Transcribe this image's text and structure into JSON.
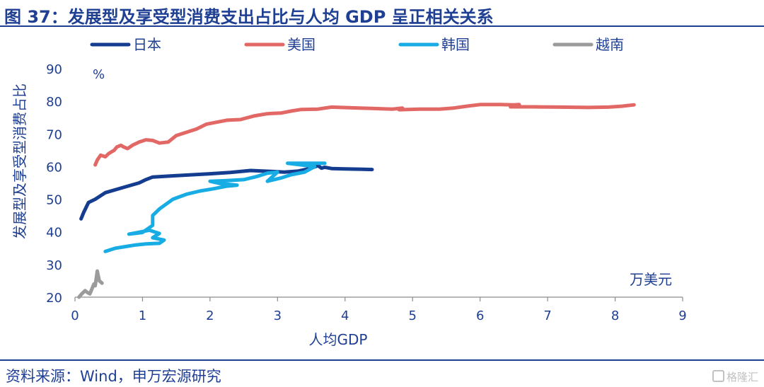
{
  "figure_title": "图 37：发展型及享受型消费支出占比与人均 GDP 呈正相关关系",
  "source_note": "资料来源：Wind，申万宏源研究",
  "watermark": "格隆汇",
  "chart_data": {
    "type": "line",
    "xlabel": "人均GDP",
    "ylabel": "发展型及享受型消费占比",
    "x_unit": "万美元",
    "y_unit": "%",
    "xlim": [
      0,
      9
    ],
    "ylim": [
      20,
      90
    ],
    "x_ticks": [
      0,
      1,
      2,
      3,
      4,
      5,
      6,
      7,
      8,
      9
    ],
    "y_ticks": [
      20,
      30,
      40,
      50,
      60,
      70,
      80,
      90
    ],
    "grid": false,
    "legend_position": "top",
    "series": [
      {
        "name": "日本",
        "color": "#143d8f",
        "points": [
          [
            0.09,
            44
          ],
          [
            0.13,
            46
          ],
          [
            0.2,
            49
          ],
          [
            0.3,
            50
          ],
          [
            0.45,
            52
          ],
          [
            0.7,
            53.5
          ],
          [
            0.95,
            55
          ],
          [
            1.05,
            56
          ],
          [
            1.15,
            56.8
          ],
          [
            1.5,
            57.2
          ],
          [
            2.0,
            57.8
          ],
          [
            2.3,
            58.2
          ],
          [
            2.6,
            58.8
          ],
          [
            2.9,
            58.5
          ],
          [
            3.1,
            58.3
          ],
          [
            3.3,
            58.6
          ],
          [
            3.5,
            59.5
          ],
          [
            3.6,
            60.3
          ],
          [
            3.65,
            59.5
          ],
          [
            3.7,
            59.8
          ],
          [
            3.8,
            59.4
          ],
          [
            4.0,
            59.3
          ],
          [
            4.2,
            59.2
          ],
          [
            4.4,
            59.1
          ]
        ]
      },
      {
        "name": "美国",
        "color": "#e26866",
        "points": [
          [
            0.3,
            60.5
          ],
          [
            0.33,
            62
          ],
          [
            0.38,
            63.5
          ],
          [
            0.45,
            63
          ],
          [
            0.5,
            64
          ],
          [
            0.58,
            65
          ],
          [
            0.62,
            66
          ],
          [
            0.68,
            66.5
          ],
          [
            0.72,
            66
          ],
          [
            0.78,
            65.5
          ],
          [
            0.85,
            66.5
          ],
          [
            0.95,
            67.5
          ],
          [
            1.05,
            68.2
          ],
          [
            1.15,
            68
          ],
          [
            1.25,
            67.2
          ],
          [
            1.38,
            67.5
          ],
          [
            1.5,
            69.5
          ],
          [
            1.65,
            70.5
          ],
          [
            1.8,
            71.5
          ],
          [
            1.95,
            73
          ],
          [
            2.1,
            73.6
          ],
          [
            2.25,
            74.2
          ],
          [
            2.45,
            74.4
          ],
          [
            2.65,
            75.5
          ],
          [
            2.85,
            76.2
          ],
          [
            3.05,
            76.4
          ],
          [
            3.2,
            77
          ],
          [
            3.35,
            77.5
          ],
          [
            3.6,
            77.6
          ],
          [
            3.8,
            78.2
          ],
          [
            4.1,
            78
          ],
          [
            4.4,
            77.8
          ],
          [
            4.7,
            77.6
          ],
          [
            4.85,
            77.9
          ],
          [
            4.8,
            77.4
          ],
          [
            5.1,
            77.6
          ],
          [
            5.4,
            77.6
          ],
          [
            5.6,
            77.9
          ],
          [
            5.8,
            78.5
          ],
          [
            6.0,
            79
          ],
          [
            6.3,
            79
          ],
          [
            6.5,
            78.9
          ],
          [
            6.58,
            79
          ],
          [
            6.45,
            78.3
          ],
          [
            6.8,
            78.3
          ],
          [
            7.2,
            78.2
          ],
          [
            7.6,
            78.1
          ],
          [
            7.9,
            78.2
          ],
          [
            8.1,
            78.5
          ],
          [
            8.28,
            78.9
          ]
        ]
      },
      {
        "name": "韩国",
        "color": "#18ace5",
        "points": [
          [
            0.45,
            34
          ],
          [
            0.6,
            35
          ],
          [
            0.75,
            35.5
          ],
          [
            0.9,
            36
          ],
          [
            1.05,
            36.3
          ],
          [
            1.25,
            36.5
          ],
          [
            1.32,
            37.5
          ],
          [
            1.15,
            38.2
          ],
          [
            1.25,
            39.5
          ],
          [
            1.1,
            40.5
          ],
          [
            0.8,
            39.3
          ],
          [
            1.0,
            39.8
          ],
          [
            1.15,
            42
          ],
          [
            1.15,
            45
          ],
          [
            1.25,
            47
          ],
          [
            1.45,
            50
          ],
          [
            1.65,
            51.5
          ],
          [
            1.85,
            52.5
          ],
          [
            2.05,
            53.2
          ],
          [
            2.25,
            54
          ],
          [
            2.4,
            54.3
          ],
          [
            2.15,
            54.8
          ],
          [
            2.0,
            55.5
          ],
          [
            2.25,
            55.7
          ],
          [
            2.5,
            56
          ],
          [
            2.7,
            57
          ],
          [
            2.85,
            58
          ],
          [
            3.0,
            58.3
          ],
          [
            2.85,
            55.5
          ],
          [
            3.05,
            56.5
          ],
          [
            3.2,
            57.5
          ],
          [
            3.4,
            58.3
          ],
          [
            3.55,
            60
          ],
          [
            3.15,
            61
          ],
          [
            3.45,
            61
          ],
          [
            3.7,
            61
          ]
        ]
      },
      {
        "name": "越南",
        "color": "#9b9b9b",
        "points": [
          [
            0.06,
            20
          ],
          [
            0.1,
            21
          ],
          [
            0.15,
            22
          ],
          [
            0.18,
            21.5
          ],
          [
            0.22,
            21
          ],
          [
            0.25,
            22.5
          ],
          [
            0.28,
            24
          ],
          [
            0.3,
            23.5
          ],
          [
            0.33,
            28
          ],
          [
            0.36,
            25
          ],
          [
            0.4,
            24.3
          ]
        ]
      }
    ]
  }
}
